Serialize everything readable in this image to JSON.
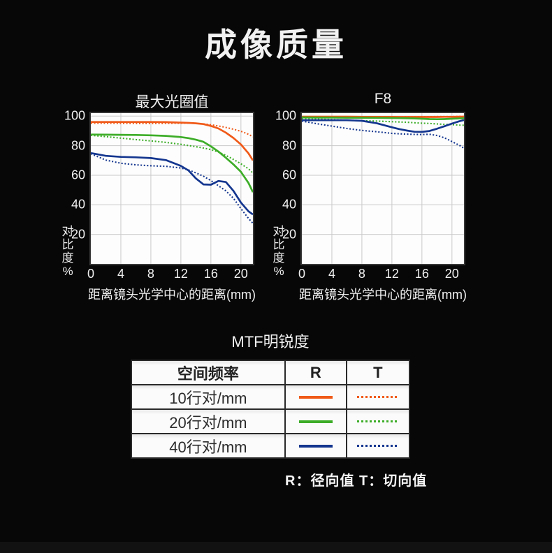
{
  "page_title": "成像质量",
  "footer_legend": "R：径向值 T：切向值",
  "palette": {
    "orange": "#f05a19",
    "green": "#3dad28",
    "blue": "#14368f"
  },
  "axis": {
    "xlabel": "距离镜头光学中心的距离(mm)",
    "ylabel": "对比度%",
    "x_ticks": [
      0,
      4,
      8,
      12,
      16,
      20
    ],
    "y_ticks": [
      20,
      40,
      60,
      80,
      100
    ],
    "xlim": [
      0,
      21.6
    ],
    "ylim": [
      0,
      102
    ],
    "grid": true
  },
  "chart_data": [
    {
      "type": "line",
      "title": "最大光圈值",
      "xlabel": "距离镜头光学中心的距离(mm)",
      "ylabel": "对比度%",
      "x": [
        0,
        2,
        4,
        6,
        8,
        10,
        12,
        13,
        14,
        15,
        16,
        17,
        18,
        19,
        20,
        21,
        21.6
      ],
      "series": [
        {
          "name": "10行对/mm R",
          "color": "orange",
          "style": "solid",
          "values": [
            96,
            96,
            96,
            96,
            96,
            95.9,
            95.6,
            95.4,
            95.1,
            94.6,
            93.3,
            91.6,
            88.8,
            85.2,
            80.8,
            74.8,
            70
          ]
        },
        {
          "name": "10行对/mm T",
          "color": "orange",
          "style": "dotted",
          "values": [
            95.2,
            95.2,
            95.1,
            95,
            95,
            95.1,
            95.2,
            95.3,
            95.1,
            94.7,
            94.1,
            93.3,
            92.3,
            91.1,
            89.7,
            87.7,
            86
          ]
        },
        {
          "name": "20行对/mm R",
          "color": "green",
          "style": "solid",
          "values": [
            87.5,
            87.4,
            87.3,
            87.2,
            87,
            86.6,
            85.8,
            85.1,
            84,
            82.6,
            79.5,
            76,
            71.8,
            67.3,
            62.3,
            54.8,
            48.5
          ]
        },
        {
          "name": "20行对/mm T",
          "color": "green",
          "style": "dotted",
          "values": [
            87,
            86.1,
            85.1,
            84.1,
            83.2,
            82.2,
            80.9,
            80.1,
            79.3,
            78.4,
            77.3,
            75.7,
            73.4,
            70.7,
            67.7,
            64.3,
            61.5
          ]
        },
        {
          "name": "40行对/mm R",
          "color": "blue",
          "style": "solid",
          "values": [
            75,
            73.1,
            72.4,
            72.1,
            71.6,
            70.2,
            66.3,
            63.3,
            57.8,
            53.8,
            53.6,
            56.1,
            55.4,
            49.4,
            41.5,
            35.6,
            33.5
          ]
        },
        {
          "name": "40行对/mm T",
          "color": "blue",
          "style": "dotted",
          "values": [
            74.5,
            70.2,
            68.1,
            67,
            66.4,
            66,
            64.9,
            63.6,
            61.6,
            59.3,
            56.4,
            52.9,
            49.4,
            44.4,
            37.4,
            30.8,
            27.5
          ]
        }
      ]
    },
    {
      "type": "line",
      "title": "F8",
      "xlabel": "距离镜头光学中心的距离(mm)",
      "ylabel": "对比度%",
      "x": [
        0,
        2,
        4,
        6,
        8,
        10,
        12,
        13,
        14,
        15,
        16,
        17,
        18,
        19,
        20,
        21,
        21.6
      ],
      "series": [
        {
          "name": "10行对/mm R",
          "color": "orange",
          "style": "solid",
          "values": [
            99.6,
            99.6,
            99.6,
            99.6,
            99.5,
            99.5,
            99.5,
            99.4,
            99.4,
            99.4,
            99.4,
            99.4,
            99.4,
            99.5,
            99.5,
            99.6,
            99.6
          ]
        },
        {
          "name": "10行对/mm T",
          "color": "orange",
          "style": "dotted",
          "values": [
            99.2,
            99.2,
            99.2,
            99.2,
            99.3,
            99.3,
            99.4,
            99.4,
            99.5,
            99.5,
            99.6,
            99.6,
            99.7,
            99.7,
            99.7,
            99.8,
            99.8
          ]
        },
        {
          "name": "20行对/mm R",
          "color": "green",
          "style": "solid",
          "values": [
            99.1,
            99,
            99,
            98.9,
            98.9,
            98.8,
            98.7,
            98.6,
            98.5,
            98.4,
            98.2,
            98,
            97.9,
            98,
            98.2,
            98.4,
            98.5
          ]
        },
        {
          "name": "20行对/mm T",
          "color": "green",
          "style": "dotted",
          "values": [
            98.4,
            98,
            97.6,
            97.2,
            96.9,
            96.6,
            96.2,
            96,
            95.8,
            95.5,
            95.2,
            95,
            94.7,
            94.4,
            94.2,
            93.9,
            93.8
          ]
        },
        {
          "name": "40行对/mm R",
          "color": "blue",
          "style": "solid",
          "values": [
            97.2,
            97.2,
            97.2,
            97.2,
            96.8,
            95.1,
            92.4,
            91.2,
            90.2,
            89.4,
            89.3,
            89.9,
            91.4,
            93.1,
            94.9,
            96.5,
            97.3
          ]
        },
        {
          "name": "40行对/mm T",
          "color": "blue",
          "style": "dotted",
          "values": [
            96.6,
            94.8,
            93.2,
            91.6,
            90.3,
            89.4,
            88.3,
            88,
            87.8,
            87.6,
            87.5,
            87.7,
            86.9,
            85.3,
            82.8,
            80.2,
            78.3
          ]
        }
      ]
    }
  ],
  "table": {
    "title": "MTF明锐度",
    "headers": [
      "空间频率",
      "R",
      "T"
    ],
    "rows": [
      {
        "label": "10行对/mm",
        "color": "orange"
      },
      {
        "label": "20行对/mm",
        "color": "green"
      },
      {
        "label": "40行对/mm",
        "color": "blue"
      }
    ]
  }
}
